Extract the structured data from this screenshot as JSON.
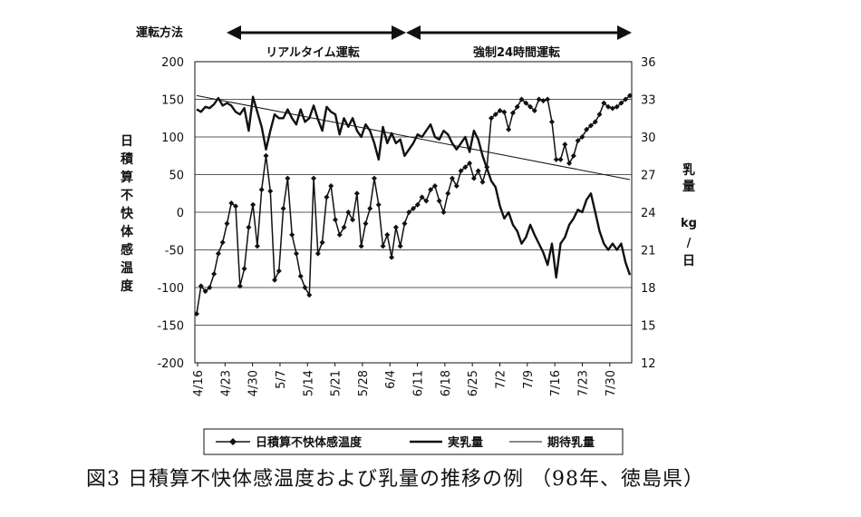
{
  "chart_data": {
    "type": "line",
    "operation_label": "運転方法",
    "phases": [
      {
        "label": "リアルタイム運転",
        "from": "4/19",
        "to": "6/10"
      },
      {
        "label": "強制24時間運転",
        "from": "6/10",
        "to": "8/3"
      }
    ],
    "ylabel_left": [
      "日",
      "積",
      "算",
      "不",
      "快",
      "体",
      "感",
      "温",
      "度"
    ],
    "ylabel_right": [
      "乳",
      "量",
      "kg",
      "/",
      "日"
    ],
    "x_ticks": [
      "4/16",
      "4/23",
      "4/30",
      "5/7",
      "5/14",
      "5/21",
      "5/28",
      "6/4",
      "6/11",
      "6/18",
      "6/25",
      "7/2",
      "7/9",
      "7/16",
      "7/23",
      "7/30"
    ],
    "y_left": {
      "min": -200,
      "max": 200,
      "step": 50,
      "ticks": [
        "200",
        "150",
        "100",
        "50",
        "0",
        "-50",
        "-100",
        "-150",
        "-200"
      ]
    },
    "y_right": {
      "min": 12,
      "max": 36,
      "step": 3,
      "ticks": [
        "36",
        "33",
        "30",
        "27",
        "24",
        "21",
        "18",
        "15",
        "12"
      ]
    },
    "grid": true,
    "legend_position": "bottom",
    "series": [
      {
        "name": "日積算不快体感温度",
        "axis": "left",
        "style": "line-diamond",
        "values": [
          -135,
          -98,
          -105,
          -100,
          -82,
          -55,
          -40,
          -15,
          12,
          8,
          -98,
          -75,
          -20,
          10,
          -45,
          30,
          75,
          28,
          -90,
          -78,
          5,
          45,
          -30,
          -55,
          -85,
          -100,
          -110,
          45,
          -55,
          -40,
          20,
          35,
          -10,
          -30,
          -20,
          0,
          -10,
          25,
          -45,
          -15,
          5,
          45,
          10,
          -45,
          -30,
          -60,
          -20,
          -45,
          -15,
          0,
          5,
          10,
          20,
          15,
          30,
          35,
          15,
          0,
          25,
          45,
          35,
          55,
          60,
          65,
          45,
          55,
          40,
          60,
          125,
          130,
          135,
          133,
          110,
          132,
          140,
          150,
          145,
          140,
          135,
          150,
          148,
          150,
          120,
          70,
          70,
          90,
          65,
          75,
          95,
          100,
          110,
          115,
          120,
          130,
          145,
          140,
          138,
          140,
          145,
          150,
          155
        ]
      },
      {
        "name": "実乳量",
        "axis": "right",
        "style": "line",
        "values": [
          32.2,
          32.0,
          32.4,
          32.3,
          32.6,
          33.1,
          32.5,
          32.7,
          32.5,
          32.0,
          31.8,
          32.3,
          30.5,
          33.2,
          32.0,
          30.8,
          29.0,
          30.5,
          31.8,
          31.5,
          31.5,
          32.2,
          31.5,
          31.0,
          32.2,
          31.2,
          31.5,
          32.5,
          31.4,
          30.5,
          32.4,
          32.0,
          31.8,
          30.2,
          31.5,
          30.8,
          31.5,
          30.5,
          30.0,
          31.0,
          30.5,
          29.5,
          28.2,
          30.8,
          29.5,
          30.3,
          29.5,
          29.8,
          28.5,
          29.0,
          29.5,
          30.2,
          30.0,
          30.5,
          31.0,
          30.0,
          29.8,
          30.5,
          30.2,
          29.5,
          29.0,
          29.5,
          30.0,
          28.8,
          30.5,
          29.8,
          28.5,
          27.5,
          26.5,
          26.0,
          24.5,
          23.5,
          24.0,
          23.0,
          22.5,
          21.5,
          22.0,
          23.0,
          22.2,
          21.5,
          20.8,
          19.8,
          21.5,
          18.8,
          21.5,
          22.0,
          23.0,
          23.5,
          24.2,
          24.0,
          25.0,
          25.5,
          24.0,
          22.5,
          21.5,
          21.0,
          21.5,
          21.0,
          21.5,
          20.0,
          19.0
        ]
      },
      {
        "name": "期待乳量",
        "axis": "right",
        "style": "thin-line",
        "values": [
          33.3,
          26.6
        ]
      }
    ]
  },
  "legend": [
    {
      "label": "日積算不快体感温度"
    },
    {
      "label": "実乳量"
    },
    {
      "label": "期待乳量"
    }
  ],
  "caption": "図3 日積算不快体感温度および乳量の推移の例 （98年、徳島県）"
}
